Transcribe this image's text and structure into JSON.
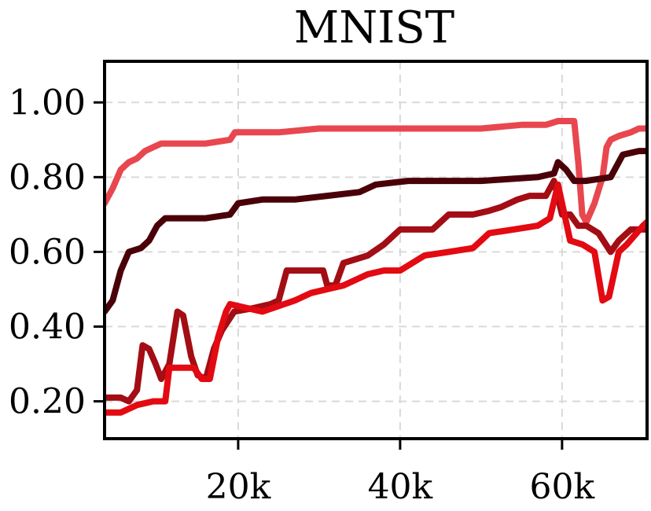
{
  "chart_data": {
    "type": "line",
    "title": "MNIST",
    "xlabel": "",
    "ylabel": "",
    "xlim": [
      3500,
      70500
    ],
    "ylim": [
      0.1,
      1.11
    ],
    "x_ticks": [
      20000,
      40000,
      60000
    ],
    "x_tick_labels": [
      "20k",
      "40k",
      "60k"
    ],
    "y_ticks": [
      0.2,
      0.4,
      0.6,
      0.8,
      1.0
    ],
    "y_tick_labels": [
      "0.20",
      "0.40",
      "0.60",
      "0.80",
      "1.00"
    ],
    "grid": true,
    "legend": "none",
    "series": [
      {
        "color": "#e8474f",
        "points": [
          [
            3500,
            0.73
          ],
          [
            4500,
            0.77
          ],
          [
            5500,
            0.82
          ],
          [
            6500,
            0.84
          ],
          [
            7500,
            0.85
          ],
          [
            8500,
            0.87
          ],
          [
            9500,
            0.88
          ],
          [
            10500,
            0.89
          ],
          [
            13000,
            0.89
          ],
          [
            16000,
            0.89
          ],
          [
            19000,
            0.9
          ],
          [
            19600,
            0.92
          ],
          [
            25000,
            0.92
          ],
          [
            30000,
            0.93
          ],
          [
            40000,
            0.93
          ],
          [
            50000,
            0.93
          ],
          [
            55000,
            0.94
          ],
          [
            58000,
            0.94
          ],
          [
            59500,
            0.95
          ],
          [
            61500,
            0.95
          ],
          [
            62000,
            0.84
          ],
          [
            62500,
            0.7
          ],
          [
            63000,
            0.68
          ],
          [
            64000,
            0.73
          ],
          [
            65000,
            0.8
          ],
          [
            65500,
            0.88
          ],
          [
            66000,
            0.9
          ],
          [
            67000,
            0.91
          ],
          [
            68500,
            0.92
          ],
          [
            69500,
            0.93
          ],
          [
            70500,
            0.93
          ]
        ]
      },
      {
        "color": "#4a0008",
        "points": [
          [
            3500,
            0.44
          ],
          [
            4500,
            0.47
          ],
          [
            5500,
            0.55
          ],
          [
            6500,
            0.6
          ],
          [
            8000,
            0.61
          ],
          [
            9000,
            0.63
          ],
          [
            10000,
            0.67
          ],
          [
            11000,
            0.69
          ],
          [
            13000,
            0.69
          ],
          [
            16000,
            0.69
          ],
          [
            19000,
            0.7
          ],
          [
            20000,
            0.73
          ],
          [
            23000,
            0.74
          ],
          [
            27000,
            0.74
          ],
          [
            31000,
            0.75
          ],
          [
            35000,
            0.76
          ],
          [
            37000,
            0.78
          ],
          [
            41000,
            0.79
          ],
          [
            50000,
            0.79
          ],
          [
            57000,
            0.8
          ],
          [
            59000,
            0.81
          ],
          [
            59500,
            0.84
          ],
          [
            60500,
            0.82
          ],
          [
            61500,
            0.79
          ],
          [
            63000,
            0.79
          ],
          [
            66000,
            0.8
          ],
          [
            67500,
            0.86
          ],
          [
            69500,
            0.87
          ],
          [
            70500,
            0.87
          ]
        ]
      },
      {
        "color": "#a30d14",
        "points": [
          [
            3500,
            0.21
          ],
          [
            5500,
            0.21
          ],
          [
            6500,
            0.2
          ],
          [
            7500,
            0.23
          ],
          [
            8200,
            0.35
          ],
          [
            9000,
            0.34
          ],
          [
            9800,
            0.3
          ],
          [
            10500,
            0.26
          ],
          [
            11500,
            0.3
          ],
          [
            12500,
            0.44
          ],
          [
            13200,
            0.43
          ],
          [
            14200,
            0.32
          ],
          [
            15000,
            0.27
          ],
          [
            16000,
            0.26
          ],
          [
            17000,
            0.34
          ],
          [
            18000,
            0.39
          ],
          [
            19500,
            0.44
          ],
          [
            22000,
            0.45
          ],
          [
            24000,
            0.46
          ],
          [
            25000,
            0.47
          ],
          [
            26000,
            0.55
          ],
          [
            28000,
            0.55
          ],
          [
            30500,
            0.55
          ],
          [
            31000,
            0.51
          ],
          [
            32000,
            0.51
          ],
          [
            33000,
            0.57
          ],
          [
            36000,
            0.59
          ],
          [
            38000,
            0.62
          ],
          [
            40000,
            0.66
          ],
          [
            44000,
            0.66
          ],
          [
            46000,
            0.7
          ],
          [
            49000,
            0.7
          ],
          [
            51000,
            0.71
          ],
          [
            52500,
            0.72
          ],
          [
            54500,
            0.74
          ],
          [
            56000,
            0.75
          ],
          [
            58000,
            0.75
          ],
          [
            59000,
            0.79
          ],
          [
            60000,
            0.7
          ],
          [
            61000,
            0.7
          ],
          [
            62000,
            0.67
          ],
          [
            63000,
            0.67
          ],
          [
            64500,
            0.65
          ],
          [
            66000,
            0.6
          ],
          [
            67000,
            0.63
          ],
          [
            68500,
            0.66
          ],
          [
            70500,
            0.66
          ]
        ]
      },
      {
        "color": "#e30a12",
        "points": [
          [
            3500,
            0.17
          ],
          [
            5500,
            0.17
          ],
          [
            7500,
            0.19
          ],
          [
            9500,
            0.2
          ],
          [
            11000,
            0.2
          ],
          [
            11500,
            0.29
          ],
          [
            14500,
            0.29
          ],
          [
            15500,
            0.26
          ],
          [
            16500,
            0.26
          ],
          [
            17500,
            0.37
          ],
          [
            18500,
            0.44
          ],
          [
            19000,
            0.46
          ],
          [
            21000,
            0.45
          ],
          [
            23000,
            0.44
          ],
          [
            27000,
            0.47
          ],
          [
            29000,
            0.49
          ],
          [
            31000,
            0.5
          ],
          [
            33000,
            0.51
          ],
          [
            36000,
            0.54
          ],
          [
            38000,
            0.55
          ],
          [
            40000,
            0.55
          ],
          [
            43000,
            0.59
          ],
          [
            46000,
            0.6
          ],
          [
            49000,
            0.61
          ],
          [
            51000,
            0.65
          ],
          [
            54000,
            0.66
          ],
          [
            57000,
            0.67
          ],
          [
            58500,
            0.69
          ],
          [
            59500,
            0.78
          ],
          [
            60500,
            0.68
          ],
          [
            61000,
            0.63
          ],
          [
            62500,
            0.62
          ],
          [
            64000,
            0.6
          ],
          [
            65000,
            0.47
          ],
          [
            65800,
            0.48
          ],
          [
            67000,
            0.6
          ],
          [
            68000,
            0.62
          ],
          [
            70000,
            0.67
          ],
          [
            70500,
            0.68
          ]
        ]
      }
    ]
  }
}
